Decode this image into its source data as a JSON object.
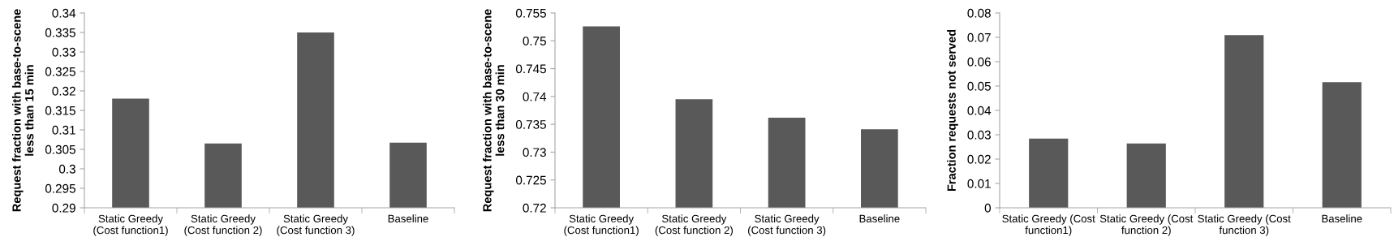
{
  "chart_data": [
    {
      "type": "bar",
      "ylabel": "Request fraction with base-to-scene\nless than 15 min",
      "categories": [
        "Static Greedy\n(Cost function1)",
        "Static Greedy\n(Cost function 2)",
        "Static Greedy\n(Cost function 3)",
        "Baseline"
      ],
      "values": [
        0.318,
        0.3065,
        0.335,
        0.3067
      ],
      "color": "#595959",
      "ylim": [
        0.29,
        0.34
      ],
      "yticks": [
        0.29,
        0.295,
        0.3,
        0.305,
        0.31,
        0.315,
        0.32,
        0.325,
        0.33,
        0.335,
        0.34
      ],
      "grid": false,
      "legend": false
    },
    {
      "type": "bar",
      "ylabel": "Request fraction with base-to-scene\nless than 30 min",
      "categories": [
        "Static Greedy\n(Cost function1)",
        "Static Greedy\n(Cost function 2)",
        "Static Greedy\n(Cost function 3)",
        "Baseline"
      ],
      "values": [
        0.7526,
        0.7395,
        0.7362,
        0.7341
      ],
      "color": "#595959",
      "ylim": [
        0.72,
        0.755
      ],
      "yticks": [
        0.72,
        0.725,
        0.73,
        0.735,
        0.74,
        0.745,
        0.75,
        0.755
      ],
      "grid": false,
      "legend": false
    },
    {
      "type": "bar",
      "ylabel": "Fraction requests not served",
      "categories": [
        "Static Greedy (Cost\nfunction1)",
        "Static Greedy (Cost\nfunction 2)",
        "Static Greedy (Cost\nfunction 3)",
        "Baseline"
      ],
      "values": [
        0.0284,
        0.0264,
        0.0709,
        0.0516
      ],
      "color": "#595959",
      "ylim": [
        0,
        0.08
      ],
      "yticks": [
        0,
        0.01,
        0.02,
        0.03,
        0.04,
        0.05,
        0.06,
        0.07,
        0.08
      ],
      "grid": false,
      "legend": false
    }
  ]
}
